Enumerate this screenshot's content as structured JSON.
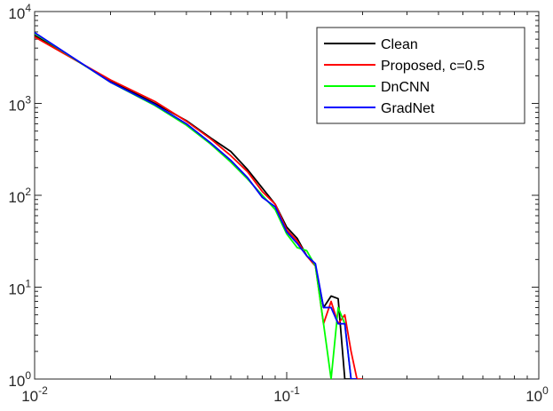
{
  "chart_data": {
    "type": "line",
    "xscale": "log",
    "yscale": "log",
    "xlim": [
      0.01,
      1
    ],
    "ylim": [
      1,
      10000
    ],
    "grid": false,
    "legend_position": "top-right",
    "title": "",
    "xlabel": "",
    "ylabel": "",
    "x_ticks": [
      {
        "value": 0.01,
        "base": "10",
        "exp": "-2"
      },
      {
        "value": 0.1,
        "base": "10",
        "exp": "-1"
      },
      {
        "value": 1,
        "base": "10",
        "exp": "0"
      }
    ],
    "y_ticks": [
      {
        "value": 1,
        "base": "10",
        "exp": "0"
      },
      {
        "value": 10,
        "base": "10",
        "exp": "1"
      },
      {
        "value": 100,
        "base": "10",
        "exp": "2"
      },
      {
        "value": 1000,
        "base": "10",
        "exp": "3"
      },
      {
        "value": 10000,
        "base": "10",
        "exp": "4"
      }
    ],
    "series": [
      {
        "name": "Clean",
        "color": "#000000",
        "x": [
          0.01,
          0.02,
          0.03,
          0.04,
          0.05,
          0.06,
          0.07,
          0.08,
          0.09,
          0.1,
          0.11,
          0.12,
          0.13,
          0.14,
          0.15,
          0.16,
          0.17,
          0.18,
          0.19
        ],
        "y": [
          5500,
          1750,
          1000,
          650,
          420,
          300,
          190,
          120,
          80,
          45,
          34,
          22,
          17,
          6,
          8,
          7.5,
          1,
          1,
          1
        ]
      },
      {
        "name": "Proposed, c=0.5",
        "color": "#ff0000",
        "x": [
          0.01,
          0.02,
          0.03,
          0.04,
          0.05,
          0.06,
          0.07,
          0.08,
          0.09,
          0.1,
          0.11,
          0.12,
          0.13,
          0.14,
          0.15,
          0.16,
          0.17,
          0.18,
          0.19,
          0.2
        ],
        "y": [
          5300,
          1800,
          1050,
          640,
          410,
          270,
          180,
          110,
          80,
          42,
          32,
          22,
          17,
          4,
          7,
          4,
          5,
          2,
          1,
          1
        ]
      },
      {
        "name": "DnCNN",
        "color": "#00ff00",
        "x": [
          0.01,
          0.02,
          0.03,
          0.04,
          0.05,
          0.06,
          0.07,
          0.08,
          0.09,
          0.1,
          0.11,
          0.12,
          0.13,
          0.14,
          0.15,
          0.16,
          0.17,
          0.18
        ],
        "y": [
          5800,
          1700,
          950,
          580,
          360,
          230,
          150,
          100,
          70,
          38,
          27,
          25,
          17,
          4,
          1,
          6,
          4,
          1
        ]
      },
      {
        "name": "GradNet",
        "color": "#0000ff",
        "x": [
          0.01,
          0.02,
          0.03,
          0.04,
          0.05,
          0.06,
          0.07,
          0.08,
          0.09,
          0.1,
          0.11,
          0.12,
          0.13,
          0.14,
          0.15,
          0.16,
          0.17,
          0.18,
          0.19
        ],
        "y": [
          5900,
          1700,
          970,
          600,
          370,
          240,
          155,
          95,
          75,
          40,
          30,
          22,
          18,
          6,
          6,
          4,
          4,
          1,
          1
        ]
      }
    ]
  }
}
